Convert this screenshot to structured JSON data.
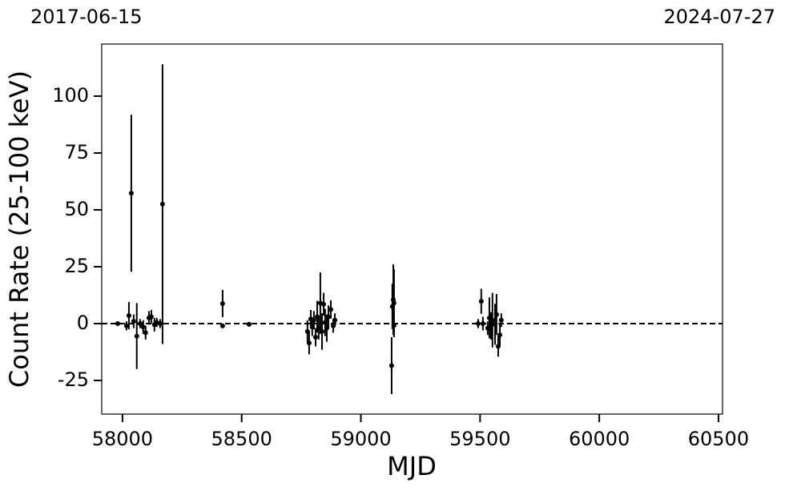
{
  "chart_data": {
    "type": "errorbar",
    "annotations": [
      "2017-06-15",
      "2024-07-27"
    ],
    "xlabel": "MJD",
    "ylabel": "Count Rate (25-100 keV)",
    "xlim": [
      57913,
      60517
    ],
    "ylim": [
      -39.8,
      122.9
    ],
    "xticks": [
      58000,
      58500,
      59000,
      59500,
      60000,
      60500
    ],
    "yticks": [
      -25,
      0,
      25,
      50,
      75,
      100
    ],
    "hline": 0,
    "color": "#000000",
    "x": [
      57980,
      58017,
      58027,
      58037,
      58047,
      58060,
      58074,
      58087,
      58097,
      58111,
      58121,
      58134,
      58144,
      58158,
      58168,
      58420,
      58420,
      58531,
      58776,
      58783,
      58790,
      58796,
      58803,
      58810,
      58817,
      58823,
      58830,
      58837,
      58844,
      58850,
      58857,
      58864,
      58874,
      58884,
      58891,
      59129,
      59132,
      59136,
      59139,
      59139,
      59492,
      59505,
      59512,
      59532,
      59539,
      59546,
      59552,
      59563,
      59569,
      59576,
      59583,
      59589
    ],
    "values": [
      0,
      -1,
      3.5,
      57.3,
      1,
      -5.5,
      0,
      -1.5,
      -4,
      2.5,
      3,
      -0.5,
      0.5,
      0,
      52.5,
      8.8,
      -1,
      -0.3,
      -3.5,
      -8.5,
      2,
      -1.5,
      1.5,
      -6,
      3,
      -2,
      9,
      -3.5,
      8.5,
      0.5,
      -2,
      3,
      6.2,
      -1,
      1.5,
      -18.5,
      7.5,
      10.5,
      9,
      -0.8,
      0,
      9.8,
      0,
      -2,
      2.5,
      -1,
      1.5,
      -0.3,
      4,
      -10,
      -5,
      1.5
    ],
    "errors": [
      0.5,
      2,
      6,
      34.5,
      3,
      14.5,
      2,
      3,
      3,
      3,
      3,
      3,
      2,
      2,
      61.5,
      6,
      1,
      1,
      5,
      5,
      4,
      4,
      4,
      4,
      7,
      5,
      13.5,
      8,
      5,
      6,
      6,
      5,
      4,
      3,
      3,
      12.5,
      10,
      15.5,
      15,
      3,
      2,
      5.5,
      3,
      3,
      9,
      6,
      12,
      9,
      9,
      4.5,
      5,
      3
    ]
  }
}
